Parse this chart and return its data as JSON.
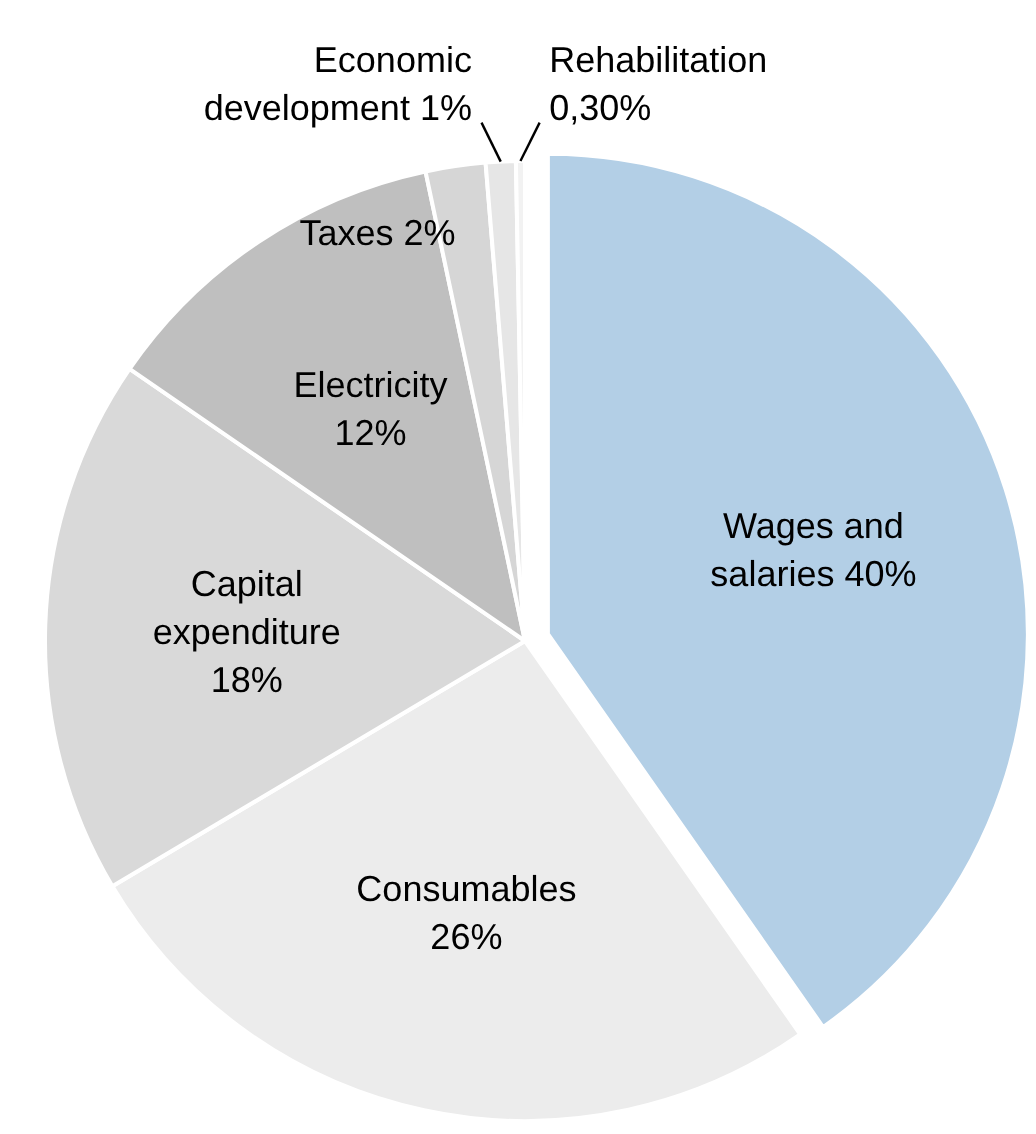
{
  "chart_data": {
    "type": "pie",
    "categories": [
      "Wages and salaries",
      "Consumables",
      "Capital expenditure",
      "Electricity",
      "Taxes",
      "Economic development",
      "Rehabilitation"
    ],
    "values": [
      40,
      26,
      18,
      12,
      2,
      1,
      0.3
    ],
    "value_labels": [
      "40%",
      "26%",
      "18%",
      "12%",
      "2%",
      "1%",
      "0,30%"
    ],
    "colors": [
      "#b3cfe6",
      "#ececec",
      "#d9d9d9",
      "#bfbfbf",
      "#d6d6d6",
      "#e6e6e6",
      "#f2f2f2"
    ]
  }
}
